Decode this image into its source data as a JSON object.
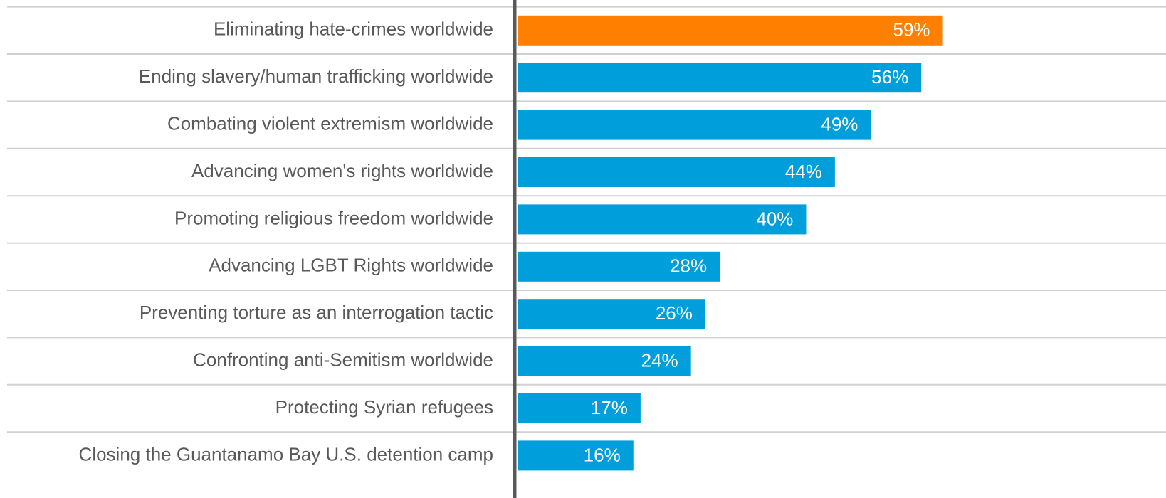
{
  "chart_data": {
    "type": "barh",
    "categories": [
      "Eliminating hate-crimes worldwide",
      "Ending slavery/human trafficking worldwide",
      "Combating violent extremism worldwide",
      "Advancing women's rights worldwide",
      "Promoting religious freedom worldwide",
      "Advancing LGBT Rights worldwide",
      "Preventing torture as an interrogation tactic",
      "Confronting anti-Semitism worldwide",
      "Protecting Syrian refugees",
      "Closing the Guantanamo Bay U.S. detention camp"
    ],
    "values": [
      59,
      56,
      49,
      44,
      40,
      28,
      26,
      24,
      17,
      16
    ],
    "value_labels": [
      "59%",
      "56%",
      "49%",
      "44%",
      "40%",
      "28%",
      "26%",
      "24%",
      "17%",
      "16%"
    ],
    "colors": [
      "#ff8000",
      "#009fdb",
      "#009fdb",
      "#009fdb",
      "#009fdb",
      "#009fdb",
      "#009fdb",
      "#009fdb",
      "#009fdb",
      "#009fdb"
    ],
    "xlim": [
      0,
      90
    ]
  }
}
